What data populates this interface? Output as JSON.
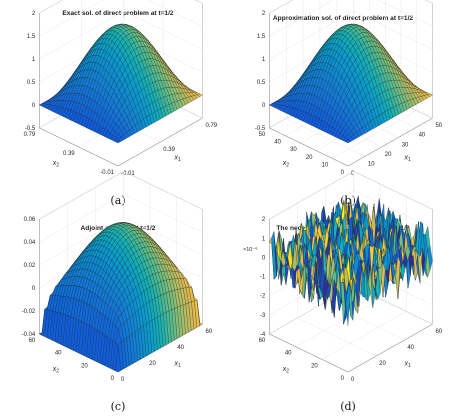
{
  "figure": {
    "panels": [
      {
        "id": "a",
        "title": "Exact sol. of direct problem at t=1/2",
        "caption": "(a)",
        "surface": "exact",
        "z_ticks": [
          "2",
          "1.5",
          "1",
          "0.5",
          "0",
          "-0.5"
        ],
        "z_exponent": "",
        "x1_label": "x",
        "x1_sub": "1",
        "x1_ticks": [
          "-0.01",
          "0.39",
          "0.79"
        ],
        "x2_label": "x",
        "x2_sub": "2",
        "x2_ticks": [
          "-0.01",
          "0.39",
          "0.79"
        ]
      },
      {
        "id": "b",
        "title": "Approximation sol. of direct problem at t=1/2",
        "caption": "(b)",
        "surface": "exact",
        "z_ticks": [
          "2",
          "1.5",
          "1",
          "0.5",
          "0",
          "-0.5"
        ],
        "z_exponent": "",
        "x1_label": "x",
        "x1_sub": "1",
        "x1_ticks": [
          "0",
          "10",
          "20",
          "30",
          "40",
          "50"
        ],
        "x2_label": "x",
        "x2_sub": "2",
        "x2_ticks": [
          "0",
          "10",
          "20",
          "30",
          "40",
          "50"
        ]
      },
      {
        "id": "c",
        "title": "Adjoint solution at t=1/2",
        "caption": "(c)",
        "surface": "adjoint",
        "z_ticks": [
          "0.06",
          "0.04",
          "0.02",
          "0",
          "-0.02",
          "-0.04"
        ],
        "z_exponent": "",
        "x1_label": "x",
        "x1_sub": "1",
        "x1_ticks": [
          "0",
          "20",
          "40",
          "60"
        ],
        "x2_label": "x",
        "x2_sub": "2",
        "x2_ticks": [
          "0",
          "20",
          "40",
          "60"
        ]
      },
      {
        "id": "d",
        "title": "The necessary optimality conditon at t=1/2",
        "caption": "(d)",
        "surface": "noise",
        "z_ticks": [
          "2",
          "1",
          "0",
          "-1",
          "-2",
          "-3",
          "-4"
        ],
        "z_exponent": "×10⁻⁶",
        "x1_label": "x",
        "x1_sub": "1",
        "x1_ticks": [
          "0",
          "20",
          "40",
          "60"
        ],
        "x2_label": "x",
        "x2_sub": "2",
        "x2_ticks": [
          "0",
          "20",
          "40",
          "60"
        ]
      }
    ]
  },
  "chart_data": [
    {
      "type": "surface",
      "title": "Exact sol. of direct problem at t=1/2",
      "xlabel": "x1",
      "ylabel": "x2",
      "xlim": [
        -0.01,
        0.79
      ],
      "ylim": [
        -0.01,
        0.79
      ],
      "zlim": [
        -0.5,
        2
      ],
      "function": "sin-dome",
      "peak_value": 1.6,
      "colormap": "parula",
      "grid": true
    },
    {
      "type": "surface",
      "title": "Approximation sol. of direct problem at t=1/2",
      "xlabel": "x1",
      "ylabel": "x2",
      "xlim": [
        0,
        50
      ],
      "ylim": [
        0,
        50
      ],
      "zlim": [
        -0.5,
        2
      ],
      "function": "sin-dome",
      "peak_value": 1.6,
      "colormap": "parula",
      "grid": true
    },
    {
      "type": "surface",
      "title": "Adjoint solution at t=1/2",
      "xlabel": "x1",
      "ylabel": "x2",
      "xlim": [
        0,
        60
      ],
      "ylim": [
        0,
        60
      ],
      "zlim": [
        -0.04,
        0.06
      ],
      "function": "dome-with-negative-edges",
      "peak_value": 0.05,
      "edge_value": -0.04,
      "colormap": "parula",
      "grid": true
    },
    {
      "type": "surface",
      "title": "The necessary optimality conditon at t=1/2",
      "xlabel": "x1",
      "ylabel": "x2",
      "xlim": [
        0,
        60
      ],
      "ylim": [
        0,
        60
      ],
      "zlim": [
        -4e-06,
        2e-06
      ],
      "function": "noise",
      "value_range": [
        -4e-06,
        2e-06
      ],
      "colormap": "parula",
      "grid": true
    }
  ]
}
